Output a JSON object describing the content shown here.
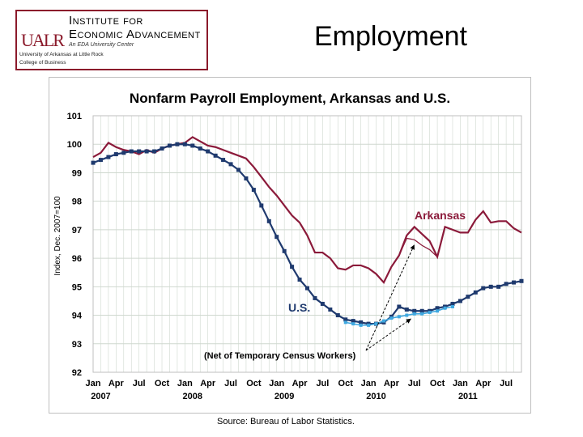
{
  "header": {
    "logo": {
      "mark_text": "UALR",
      "line1": "Institute for",
      "line2": "Economic Advancement",
      "line3": "An EDA University Center",
      "line4": "University of Arkansas at Little Rock",
      "line5": "College of Business"
    },
    "slide_title": "Employment"
  },
  "footer": {
    "source": "Source:  Bureau of Labor Statistics."
  },
  "colors": {
    "arkansas": "#8b1a3a",
    "us": "#1f3a6e",
    "us_net_census": "#3fa8e0",
    "arkansas_label": "#8b1a3a",
    "us_label": "#1f3a6e",
    "gridline": "#cfd8cf",
    "plot_border": "#bfbfbf",
    "logo_border": "#8b1a2b"
  },
  "chart_data": {
    "type": "line",
    "title": "Nonfarm Payroll Employment, Arkansas and U.S.",
    "ylabel": "Index, Dec. 2007=100",
    "xlabel": "",
    "ylim": [
      92,
      101
    ],
    "y_ticks": [
      "101",
      "100",
      "99",
      "98",
      "97",
      "96",
      "95",
      "94",
      "93",
      "92"
    ],
    "grid": true,
    "x_tick_labels": [
      "Jan",
      "Apr",
      "Jul",
      "Oct",
      "Jan",
      "Apr",
      "Jul",
      "Oct",
      "Jan",
      "Apr",
      "Jul",
      "Oct",
      "Jan",
      "Apr",
      "Jul",
      "Oct",
      "Jan",
      "Apr",
      "Jul"
    ],
    "year_labels": [
      "2007",
      "2008",
      "2009",
      "2010",
      "2011"
    ],
    "x_months": [
      "Jan 2007",
      "Feb 2007",
      "Mar 2007",
      "Apr 2007",
      "May 2007",
      "Jun 2007",
      "Jul 2007",
      "Aug 2007",
      "Sep 2007",
      "Oct 2007",
      "Nov 2007",
      "Dec 2007",
      "Jan 2008",
      "Feb 2008",
      "Mar 2008",
      "Apr 2008",
      "May 2008",
      "Jun 2008",
      "Jul 2008",
      "Aug 2008",
      "Sep 2008",
      "Oct 2008",
      "Nov 2008",
      "Dec 2008",
      "Jan 2009",
      "Feb 2009",
      "Mar 2009",
      "Apr 2009",
      "May 2009",
      "Jun 2009",
      "Jul 2009",
      "Aug 2009",
      "Sep 2009",
      "Oct 2009",
      "Nov 2009",
      "Dec 2009",
      "Jan 2010",
      "Feb 2010",
      "Mar 2010",
      "Apr 2010",
      "May 2010",
      "Jun 2010",
      "Jul 2010",
      "Aug 2010",
      "Sep 2010",
      "Oct 2010",
      "Nov 2010",
      "Dec 2010",
      "Jan 2011",
      "Feb 2011",
      "Mar 2011",
      "Apr 2011",
      "May 2011",
      "Jun 2011",
      "Jul 2011",
      "Aug 2011",
      "Sep 2011"
    ],
    "series": [
      {
        "name": "Arkansas",
        "values": [
          99.55,
          99.7,
          100.05,
          99.9,
          99.8,
          99.75,
          99.65,
          99.8,
          99.7,
          99.85,
          99.95,
          100.0,
          100.05,
          100.25,
          100.1,
          99.95,
          99.9,
          99.8,
          99.7,
          99.6,
          99.5,
          99.2,
          98.85,
          98.5,
          98.2,
          97.85,
          97.5,
          97.25,
          96.8,
          96.2,
          96.2,
          96.0,
          95.65,
          95.6,
          95.75,
          95.75,
          95.65,
          95.45,
          95.15,
          95.7,
          96.1,
          96.8,
          97.1,
          96.85,
          96.6,
          96.05,
          97.1,
          97.0,
          96.9,
          96.9,
          97.35,
          97.65,
          97.25,
          97.3,
          97.3,
          97.05,
          96.9
        ]
      },
      {
        "name": "U.S.",
        "values": [
          99.35,
          99.45,
          99.55,
          99.65,
          99.7,
          99.75,
          99.75,
          99.75,
          99.75,
          99.85,
          99.95,
          100.0,
          100.0,
          99.95,
          99.85,
          99.75,
          99.6,
          99.45,
          99.3,
          99.1,
          98.8,
          98.4,
          97.85,
          97.3,
          96.75,
          96.25,
          95.7,
          95.25,
          94.95,
          94.6,
          94.4,
          94.2,
          94.0,
          93.85,
          93.8,
          93.75,
          93.7,
          93.7,
          93.75,
          93.95,
          94.3,
          94.2,
          94.15,
          94.15,
          94.15,
          94.25,
          94.3,
          94.4,
          94.5,
          94.65,
          94.8,
          94.95,
          95.0,
          95.0,
          95.1,
          95.15,
          95.2
        ]
      },
      {
        "name": "",
        "x_range": [
          "Oct 2009",
          "Dec 2010"
        ],
        "values": [
          93.75,
          93.7,
          93.65,
          93.65,
          93.7,
          93.8,
          93.9,
          93.95,
          94.0,
          94.05,
          94.05,
          94.1,
          94.15,
          94.25,
          94.3
        ]
      },
      {
        "name": "",
        "x_range": [
          "Apr 2010",
          "Oct 2010"
        ],
        "values": [
          95.7,
          96.1,
          96.7,
          96.65,
          96.45,
          96.3,
          96.05
        ]
      }
    ],
    "annotations": [
      {
        "text": "Arkansas",
        "points_to": "arkansas net-of-census line, Jul 2010"
      },
      {
        "text": "U.S.",
        "points_to": "U.S. series"
      },
      {
        "text": "(Net of Temporary Census Workers)",
        "points_to": "net-of-census lines, Jul 2010"
      }
    ]
  }
}
